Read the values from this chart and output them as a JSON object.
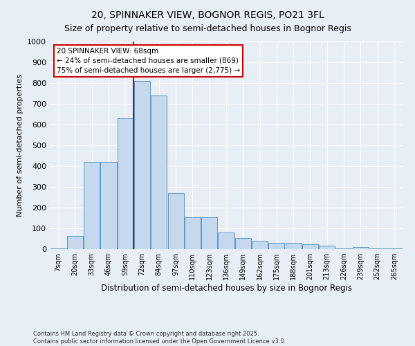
{
  "title": "20, SPINNAKER VIEW, BOGNOR REGIS, PO21 3FL",
  "subtitle": "Size of property relative to semi-detached houses in Bognor Regis",
  "xlabel": "Distribution of semi-detached houses by size in Bognor Regis",
  "ylabel": "Number of semi-detached properties",
  "footnote": "Contains HM Land Registry data © Crown copyright and database right 2025.\nContains public sector information licensed under the Open Government Licence v3.0.",
  "bar_labels": [
    "7sqm",
    "20sqm",
    "33sqm",
    "46sqm",
    "59sqm",
    "72sqm",
    "84sqm",
    "97sqm",
    "110sqm",
    "123sqm",
    "136sqm",
    "149sqm",
    "162sqm",
    "175sqm",
    "188sqm",
    "201sqm",
    "213sqm",
    "226sqm",
    "239sqm",
    "252sqm",
    "265sqm"
  ],
  "bar_values": [
    2,
    62,
    420,
    420,
    630,
    810,
    740,
    270,
    155,
    155,
    80,
    55,
    40,
    30,
    30,
    22,
    18,
    5,
    10,
    3,
    2
  ],
  "bar_color": "#c5d8ed",
  "bar_edge_color": "#5a9ac8",
  "annotation_title": "20 SPINNAKER VIEW: 68sqm",
  "annotation_line1": "← 24% of semi-detached houses are smaller (869)",
  "annotation_line2": "75% of semi-detached houses are larger (2,775) →",
  "annotation_box_color": "#ffffff",
  "annotation_box_edge": "#cc0000",
  "vline_color": "#cc0000",
  "vline_x": 4.5,
  "ylim": [
    0,
    1000
  ],
  "yticks": [
    0,
    100,
    200,
    300,
    400,
    500,
    600,
    700,
    800,
    900,
    1000
  ],
  "background_color": "#e8eef5",
  "grid_color": "#ffffff",
  "title_fontsize": 10,
  "subtitle_fontsize": 9
}
